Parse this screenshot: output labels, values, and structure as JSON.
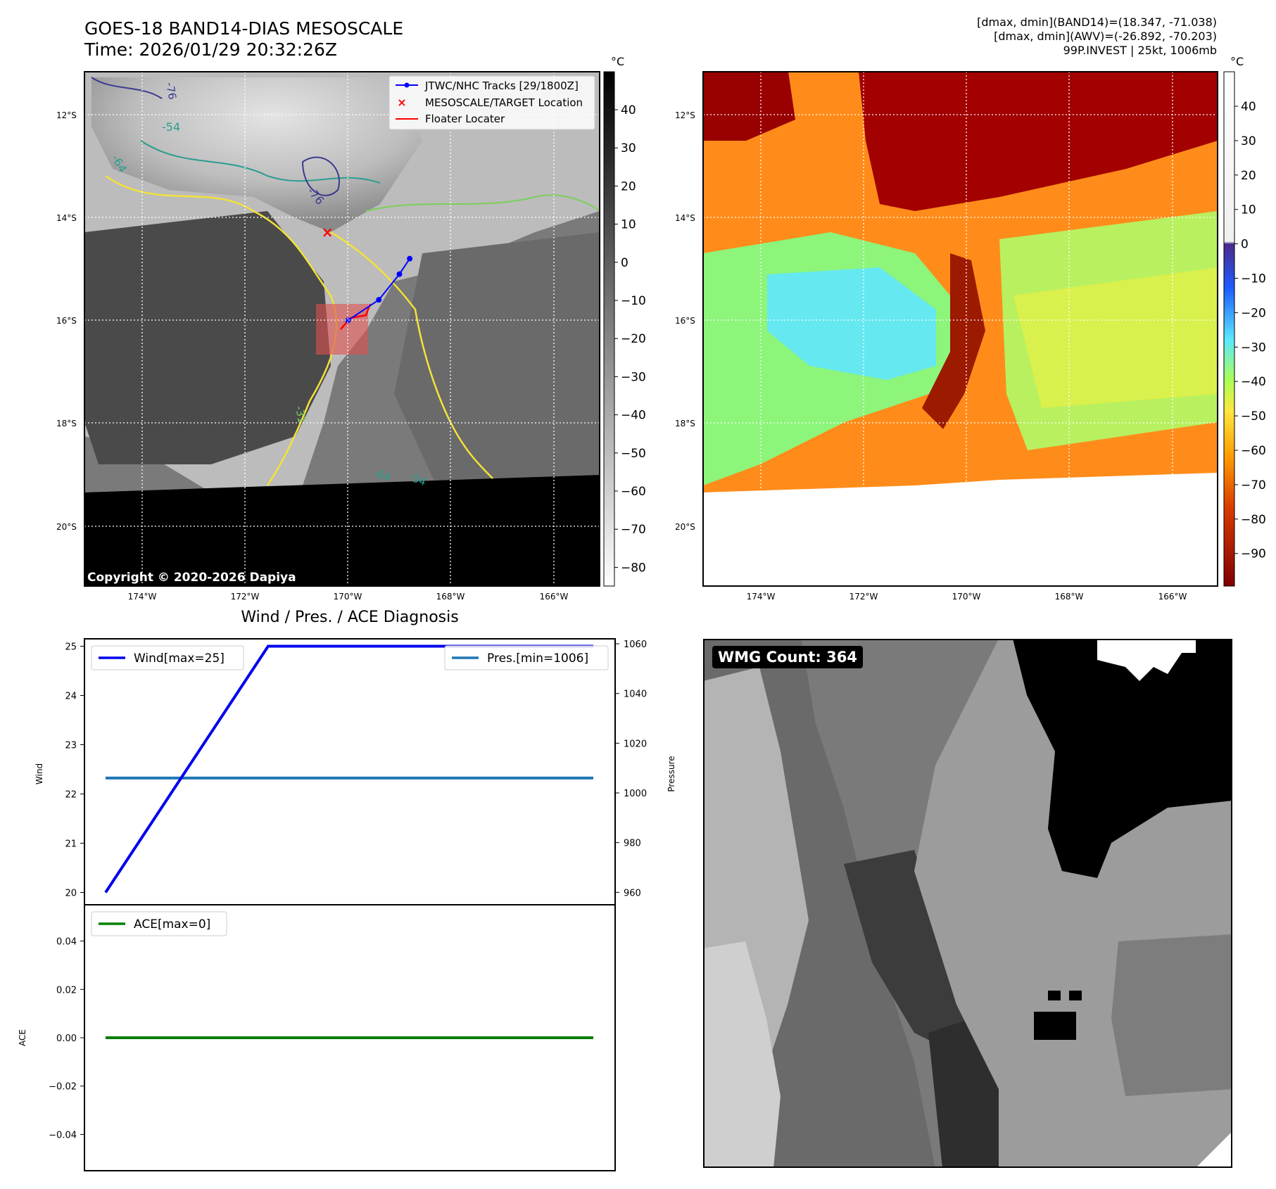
{
  "header": {
    "title_line1": "GOES-18 BAND14-DIAS MESOSCALE",
    "title_line2": "Time: 2026/01/29 20:32:26Z",
    "right_line1": "[dmax, dmin](BAND14)=(18.347, -71.038)",
    "right_line2": "[dmax, dmin](AWV)=(-26.892, -70.203)",
    "right_line3": "99P.INVEST | 25kt, 1006mb"
  },
  "map_axes": {
    "lon_labels": [
      "174°W",
      "172°W",
      "170°W",
      "168°W",
      "166°W"
    ],
    "lat_labels": [
      "12°S",
      "14°S",
      "16°S",
      "18°S",
      "20°S"
    ]
  },
  "left_map": {
    "legend": {
      "tracks": "JTWC/NHC Tracks [29/1800Z]",
      "target": "MESOSCALE/TARGET Location",
      "floater": "Floater Locater"
    },
    "contour_labels": [
      "-54",
      "-64",
      "-76",
      "-31",
      "-64",
      "-54",
      "-76"
    ],
    "copyright": "Copyright © 2020-2026 Dapiya",
    "colorbar": {
      "unit": "°C",
      "ticks": [
        "40",
        "30",
        "20",
        "10",
        "0",
        "−10",
        "−20",
        "−30",
        "−40",
        "−50",
        "−60",
        "−70",
        "−80"
      ]
    }
  },
  "right_map": {
    "colorbar": {
      "unit": "°C",
      "ticks": [
        "40",
        "30",
        "20",
        "10",
        "0",
        "−10",
        "−20",
        "−30",
        "−40",
        "−50",
        "−60",
        "−70",
        "−80",
        "−90"
      ]
    }
  },
  "diagnosis": {
    "title": "Wind / Pres. / ACE Diagnosis",
    "wind_ylabel": "Wind",
    "pressure_ylabel": "Pressure",
    "ace_ylabel": "ACE",
    "wind_legend": "Wind[max=25]",
    "pres_legend": "Pres.[min=1006]",
    "ace_legend": "ACE[max=0]",
    "wind_ticks": [
      "25",
      "24",
      "23",
      "22",
      "21",
      "20"
    ],
    "pres_ticks": [
      "1060",
      "1040",
      "1020",
      "1000",
      "980",
      "960"
    ],
    "ace_ticks": [
      "0.04",
      "0.02",
      "0.00",
      "−0.02",
      "−0.04"
    ]
  },
  "wmg": {
    "badge": "WMG Count: 364"
  },
  "colors": {
    "wind": "#0000ee",
    "pressure": "#1f77b4",
    "ace": "#008000",
    "track": "#0000ff",
    "floater": "#ff0000"
  },
  "chart_data": [
    {
      "type": "line",
      "panel": "wind-pressure",
      "x": [
        0,
        1,
        2,
        3
      ],
      "series": [
        {
          "name": "Wind[max=25]",
          "axis": "left",
          "values": [
            20,
            25,
            25,
            25
          ]
        },
        {
          "name": "Pres.[min=1006]",
          "axis": "right",
          "values": [
            1006,
            1006,
            1006,
            1006
          ]
        }
      ],
      "ylabel": "Wind",
      "ylim": [
        19.75,
        25.15
      ],
      "y2label": "Pressure",
      "y2lim": [
        955,
        1062
      ]
    },
    {
      "type": "line",
      "panel": "ace",
      "x": [
        0,
        3
      ],
      "series": [
        {
          "name": "ACE[max=0]",
          "values": [
            0,
            0
          ]
        }
      ],
      "ylabel": "ACE",
      "ylim": [
        -0.055,
        0.055
      ]
    },
    {
      "type": "line",
      "panel": "track",
      "series": [
        {
          "name": "JTWC/NHC Tracks [29/1800Z]",
          "lon": [
            -170.0,
            -169.4,
            -169.0,
            -168.8
          ],
          "lat": [
            -16.0,
            -15.6,
            -15.1,
            -14.8
          ]
        }
      ],
      "target": {
        "lon": -170.4,
        "lat": -14.3
      }
    }
  ]
}
